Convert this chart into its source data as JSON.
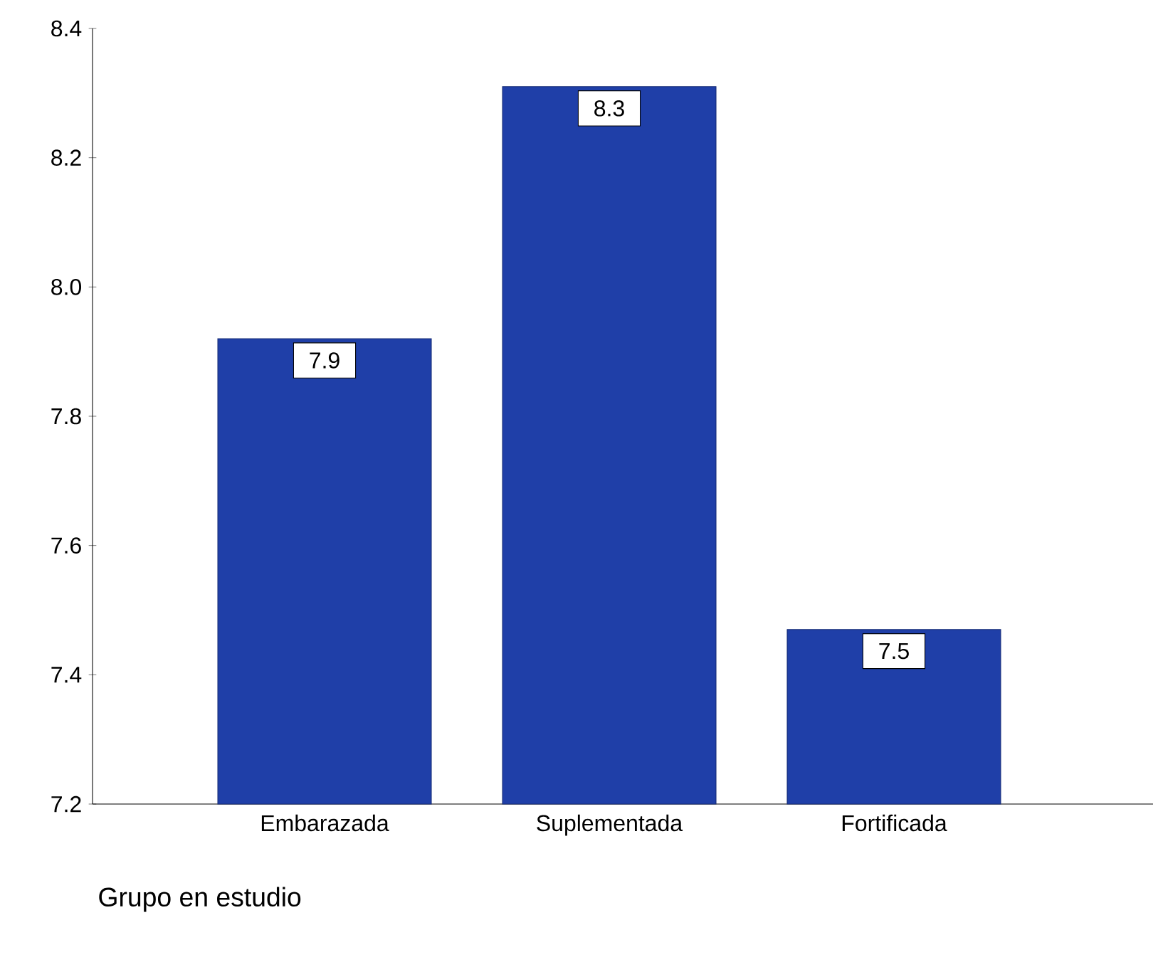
{
  "chart_data": {
    "type": "bar",
    "xlabel": "Grupo en estudio",
    "categories": [
      "Embarazada",
      "Suplementada",
      "Fortificada"
    ],
    "values": [
      7.92,
      8.31,
      7.47
    ],
    "value_labels": [
      "7.9",
      "8.3",
      "7.5"
    ],
    "color": "#1f3fa8",
    "ylim": [
      7.2,
      8.4
    ],
    "yticks": [
      7.2,
      7.4,
      7.6,
      7.8,
      {
        "value": 8.0,
        "label": "8.0"
      },
      8.2,
      8.4
    ]
  }
}
